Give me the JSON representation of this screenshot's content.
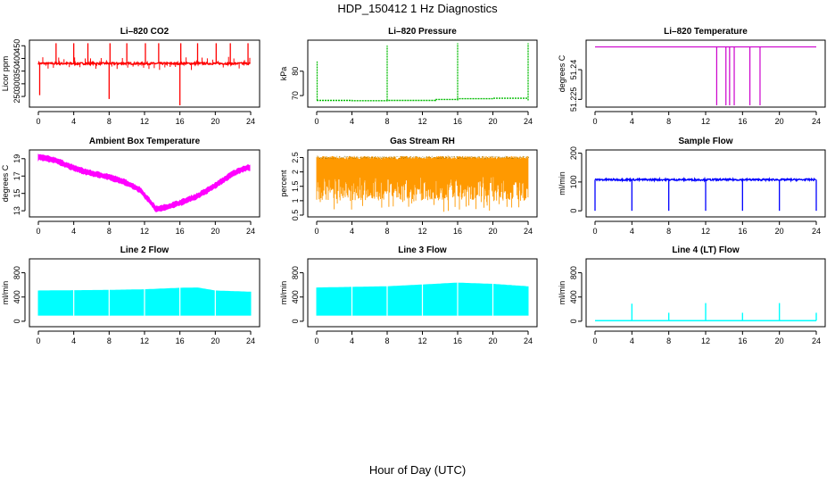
{
  "figure": {
    "title": "HDP_150412  1 Hz Diagnostics",
    "xlabel": "Hour of Day (UTC)"
  },
  "chart_data": [
    {
      "id": "p1",
      "type": "line",
      "title": "Li–820 CO2",
      "ylabel": "Licor ppm",
      "color": "#ff0000",
      "xlim": [
        0,
        24
      ],
      "xticks": [
        0,
        4,
        8,
        12,
        16,
        20,
        24
      ],
      "ylim": [
        215,
        465
      ],
      "yticks": [
        250,
        300,
        350,
        400,
        450
      ],
      "baseline": 380,
      "noise": 4,
      "spikes_up": [
        2.0,
        4.0,
        5.6,
        8.1,
        10.0,
        12.1,
        13.6,
        16.1,
        18.0,
        20.1,
        21.7,
        23.7
      ],
      "spike_up_value": 460,
      "spikes_down": [
        0.15,
        8.0,
        16.0
      ],
      "spike_down_values": [
        255,
        240,
        215
      ]
    },
    {
      "id": "p2",
      "type": "line",
      "title": "Li–820 Pressure",
      "ylabel": "kPa",
      "color": "#00bb00",
      "xlim": [
        0,
        24
      ],
      "xticks": [
        0,
        4,
        8,
        12,
        16,
        20,
        24
      ],
      "ylim": [
        66,
        92
      ],
      "yticks": [
        70,
        80
      ],
      "baseline_segments": [
        [
          0,
          4,
          68.0
        ],
        [
          4,
          8,
          67.9
        ],
        [
          8,
          13.5,
          68.0
        ],
        [
          13.5,
          16,
          68.4
        ],
        [
          16,
          20,
          68.7
        ],
        [
          20,
          24,
          68.9
        ]
      ],
      "spikes": [
        [
          0.05,
          84
        ],
        [
          8.0,
          90.5
        ],
        [
          16.0,
          91.5
        ],
        [
          24.0,
          91.5
        ]
      ]
    },
    {
      "id": "p3",
      "type": "line",
      "title": "Li–820 Temperature",
      "ylabel": "degrees C",
      "color": "#cc00cc",
      "xlim": [
        0,
        24
      ],
      "xticks": [
        0,
        4,
        8,
        12,
        16,
        20,
        24
      ],
      "ylim": [
        51.222,
        51.254
      ],
      "yticks": [
        51.225,
        51.24
      ],
      "baseline": 51.2515,
      "drops": [
        13.2,
        14.2,
        14.6,
        15.1,
        16.8,
        17.9
      ],
      "drop_value": 51.222
    },
    {
      "id": "p4",
      "type": "line",
      "title": "Ambient Box Temperature",
      "ylabel": "degrees C",
      "color": "#ff00ff",
      "xlim": [
        0,
        24
      ],
      "xticks": [
        0,
        4,
        8,
        12,
        16,
        20,
        24
      ],
      "ylim": [
        12.5,
        19.8
      ],
      "yticks": [
        13,
        15,
        17,
        19
      ],
      "curve": [
        [
          0,
          19.2
        ],
        [
          2,
          18.8
        ],
        [
          4,
          17.9
        ],
        [
          6,
          17.3
        ],
        [
          8,
          16.9
        ],
        [
          10,
          16.2
        ],
        [
          11.5,
          15.4
        ],
        [
          12.5,
          14.2
        ],
        [
          13.3,
          13.2
        ],
        [
          14,
          13.3
        ],
        [
          16,
          13.9
        ],
        [
          18,
          14.7
        ],
        [
          20,
          15.9
        ],
        [
          22,
          17.3
        ],
        [
          23.3,
          17.9
        ],
        [
          24,
          18.0
        ]
      ],
      "band": 0.3
    },
    {
      "id": "p5",
      "type": "line",
      "title": "Gas Stream RH",
      "ylabel": "percent",
      "color": "#ff9900",
      "xlim": [
        0,
        24
      ],
      "xticks": [
        0,
        4,
        8,
        12,
        16,
        20,
        24
      ],
      "ylim": [
        0.5,
        2.7
      ],
      "yticks": [
        0.5,
        1.0,
        1.5,
        2.0,
        2.5
      ],
      "upper": 2.55,
      "lower": 1.0
    },
    {
      "id": "p6",
      "type": "line",
      "title": "Sample Flow",
      "ylabel": "ml/min",
      "color": "#0000ff",
      "xlim": [
        0,
        24
      ],
      "xticks": [
        0,
        4,
        8,
        12,
        16,
        20,
        24
      ],
      "ylim": [
        -15,
        205
      ],
      "yticks": [
        0,
        100,
        200
      ],
      "baseline": 108,
      "noise": 3,
      "drops": [
        0.0,
        4.0,
        8.0,
        12.0,
        16.0,
        20.0,
        24.0
      ],
      "drop_value": 0
    },
    {
      "id": "p7",
      "type": "area",
      "title": "Line 2 Flow",
      "ylabel": "ml/min",
      "color": "#00ffff",
      "xlim": [
        0,
        24
      ],
      "xticks": [
        0,
        4,
        8,
        12,
        16,
        20,
        24
      ],
      "ylim": [
        -60,
        1000
      ],
      "yticks": [
        0,
        400,
        800
      ],
      "band_top": [
        [
          0,
          500
        ],
        [
          4,
          505
        ],
        [
          8,
          510
        ],
        [
          12,
          520
        ],
        [
          16,
          545
        ],
        [
          18,
          550
        ],
        [
          20,
          500
        ],
        [
          24,
          480
        ]
      ],
      "band_bottom": 100,
      "gaps": [
        4.0,
        8.0,
        12.0,
        16.0,
        20.0
      ]
    },
    {
      "id": "p8",
      "type": "area",
      "title": "Line 3 Flow",
      "ylabel": "ml/min",
      "color": "#00ffff",
      "xlim": [
        0,
        24
      ],
      "xticks": [
        0,
        4,
        8,
        12,
        16,
        20,
        24
      ],
      "ylim": [
        -60,
        1000
      ],
      "yticks": [
        0,
        400,
        800
      ],
      "band_top": [
        [
          0,
          550
        ],
        [
          4,
          560
        ],
        [
          8,
          570
        ],
        [
          12,
          600
        ],
        [
          16,
          630
        ],
        [
          20,
          610
        ],
        [
          24,
          570
        ]
      ],
      "band_bottom": 100,
      "gaps": [
        4.0,
        8.0,
        12.0,
        16.0,
        20.0
      ]
    },
    {
      "id": "p9",
      "type": "line",
      "title": "Line 4 (LT) Flow",
      "ylabel": "ml/min",
      "color": "#00ffff",
      "xlim": [
        0,
        24
      ],
      "xticks": [
        0,
        4,
        8,
        12,
        16,
        20,
        24
      ],
      "ylim": [
        -60,
        1000
      ],
      "yticks": [
        0,
        400,
        800
      ],
      "baseline": 10,
      "spikes": [
        [
          4.0,
          290
        ],
        [
          8.0,
          140
        ],
        [
          12.0,
          300
        ],
        [
          16.0,
          140
        ],
        [
          20.0,
          300
        ],
        [
          24.0,
          140
        ]
      ]
    }
  ]
}
